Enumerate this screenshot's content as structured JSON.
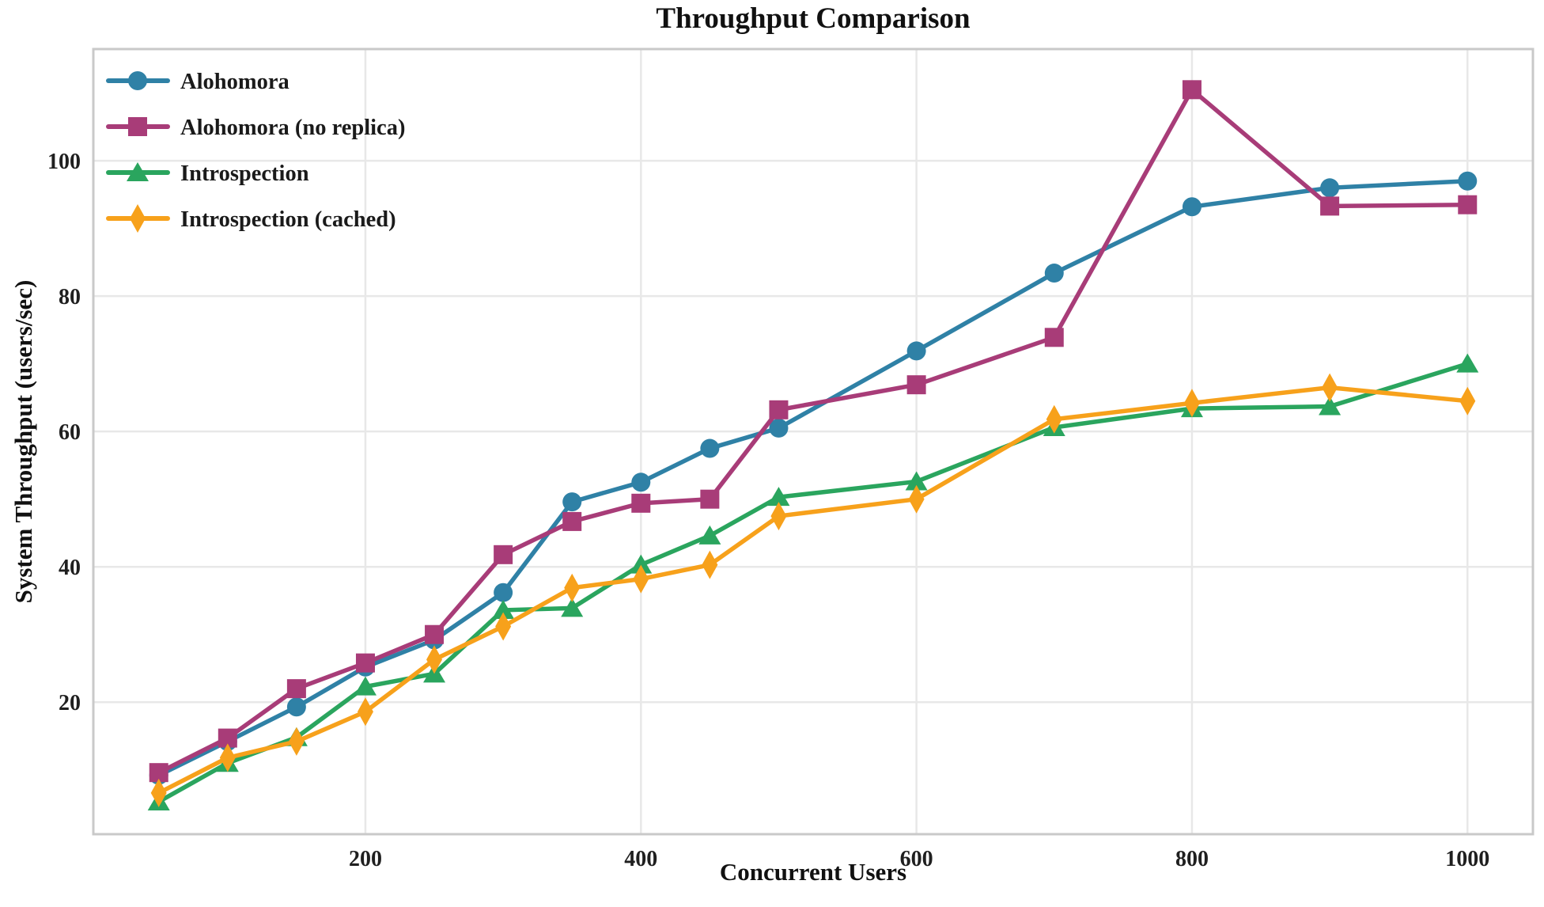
{
  "chart_data": {
    "type": "line",
    "title": "Throughput Comparison",
    "xlabel": "Concurrent Users",
    "ylabel": "System Throughput (users/sec)",
    "x": [
      50,
      100,
      150,
      200,
      250,
      300,
      350,
      400,
      450,
      500,
      600,
      700,
      800,
      900,
      1000
    ],
    "series": [
      {
        "name": "Alohomora",
        "marker": "circle",
        "color": "#2f81a6",
        "values": [
          9.2,
          14.2,
          19.3,
          25.2,
          29.2,
          36.2,
          49.6,
          52.5,
          57.5,
          60.5,
          71.9,
          83.4,
          93.2,
          96.0,
          97.0
        ]
      },
      {
        "name": "Alohomora (no replica)",
        "marker": "square",
        "color": "#a83c78",
        "values": [
          9.6,
          14.7,
          22.0,
          25.8,
          30.0,
          41.8,
          46.7,
          49.4,
          50.0,
          63.2,
          66.9,
          73.9,
          110.5,
          93.3,
          93.5
        ]
      },
      {
        "name": "Introspection",
        "marker": "triangle",
        "color": "#2aa55e",
        "values": [
          5.3,
          11.0,
          14.8,
          22.3,
          24.2,
          33.6,
          33.9,
          40.3,
          44.6,
          50.3,
          52.6,
          60.6,
          63.4,
          63.7,
          70.0
        ]
      },
      {
        "name": "Introspection (cached)",
        "marker": "thin-diamond",
        "color": "#f7a11b",
        "values": [
          6.6,
          11.8,
          14.2,
          18.6,
          26.3,
          31.2,
          36.9,
          38.2,
          40.3,
          47.5,
          50.0,
          61.8,
          64.2,
          66.5,
          64.5
        ]
      }
    ],
    "xticks": [
      200,
      400,
      600,
      800,
      1000
    ],
    "yticks": [
      20,
      40,
      60,
      80,
      100
    ],
    "xlim": [
      2.5,
      1047.5
    ],
    "ylim": [
      0.5,
      116.5
    ],
    "grid": true,
    "legend_position": "upper left",
    "colors": {
      "grid": "#e8e8e8",
      "spine": "#c9c9c9",
      "tick_text": "#1f1f1f",
      "legend_text": "#1a1a1a"
    }
  }
}
